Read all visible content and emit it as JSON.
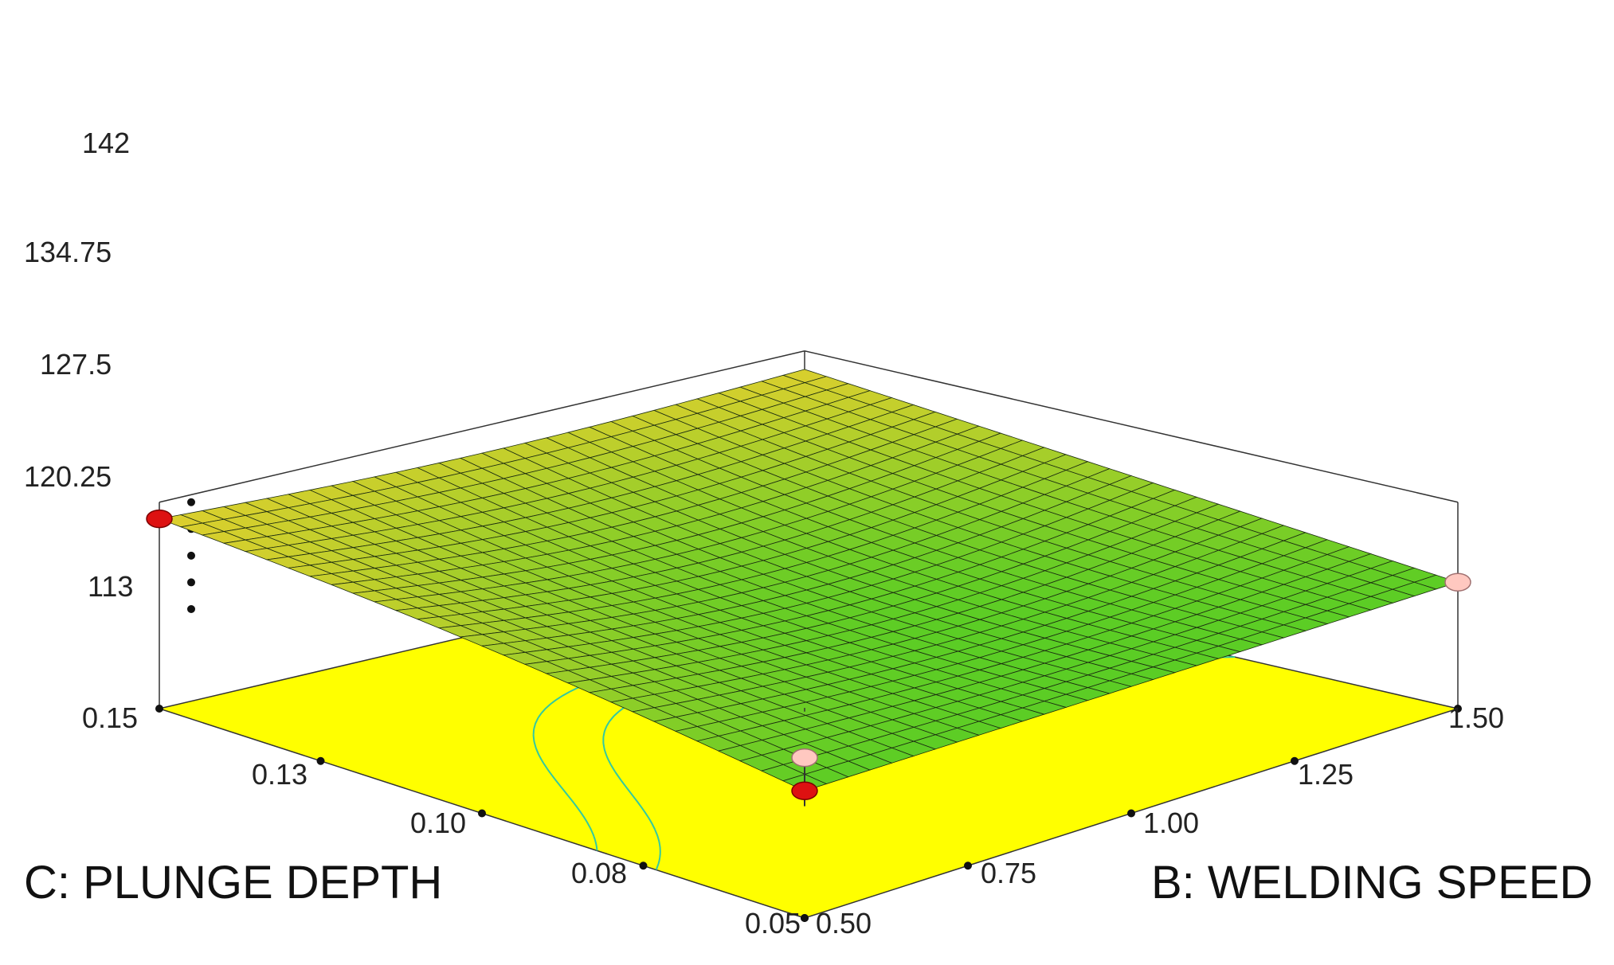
{
  "chart_data": {
    "type": "surface3d",
    "xlabel": "C: PLUNGE DEPTH",
    "ylabel": "B: WELDING SPEED",
    "zlabel": "",
    "xlim": [
      0.05,
      0.15
    ],
    "ylim": [
      0.5,
      1.5
    ],
    "zlim": [
      113,
      142
    ],
    "x_ticks": [
      "0.05",
      "0.08",
      "0.10",
      "0.13",
      "0.15"
    ],
    "y_ticks": [
      "0.50",
      "0.75",
      "1.00",
      "1.25",
      "1.50"
    ],
    "z_ticks": [
      "113",
      "120.25",
      "127.5",
      "134.75",
      "142"
    ],
    "grid_size": 30,
    "corner_values": [
      {
        "plunge_depth": 0.15,
        "welding_speed": 0.5,
        "value": 137.5
      },
      {
        "plunge_depth": 0.05,
        "welding_speed": 0.5,
        "value": 120.5
      },
      {
        "plunge_depth": 0.05,
        "welding_speed": 1.5,
        "value": 120.3
      },
      {
        "plunge_depth": 0.15,
        "welding_speed": 1.5,
        "value": 137.0
      }
    ],
    "surface_range": [
      115,
      142
    ],
    "design_points": [
      {
        "plunge_depth": 0.15,
        "welding_speed": 0.5,
        "value": 137.5,
        "position": "above surface"
      },
      {
        "plunge_depth": 0.05,
        "welding_speed": 0.5,
        "value": 120.5,
        "position": "above surface"
      },
      {
        "plunge_depth": 0.05,
        "welding_speed": 0.5,
        "value": 129.5,
        "position": "below surface"
      },
      {
        "plunge_depth": 0.05,
        "welding_speed": 1.5,
        "value": 120.3,
        "position": "below surface"
      }
    ],
    "contour_levels": [
      126,
      128
    ],
    "colors": {
      "surface_low": "#33cc22",
      "surface_high": "#ffd030",
      "floor": "#ffff00",
      "contour": "#33c9a0",
      "point_above": "#dd1111",
      "point_below": "#ffc8c0"
    }
  }
}
